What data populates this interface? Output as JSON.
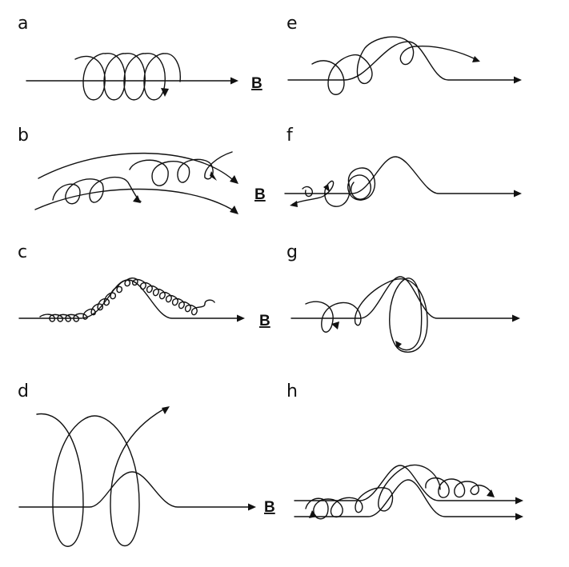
{
  "panels": [
    {
      "label": "a",
      "field_label": "B"
    },
    {
      "label": "b",
      "field_label": "B"
    },
    {
      "label": "c",
      "field_label": "B"
    },
    {
      "label": "d",
      "field_label": "B"
    },
    {
      "label": "e",
      "field_label": ""
    },
    {
      "label": "f",
      "field_label": ""
    },
    {
      "label": "g",
      "field_label": ""
    },
    {
      "label": "h",
      "field_label": ""
    }
  ]
}
